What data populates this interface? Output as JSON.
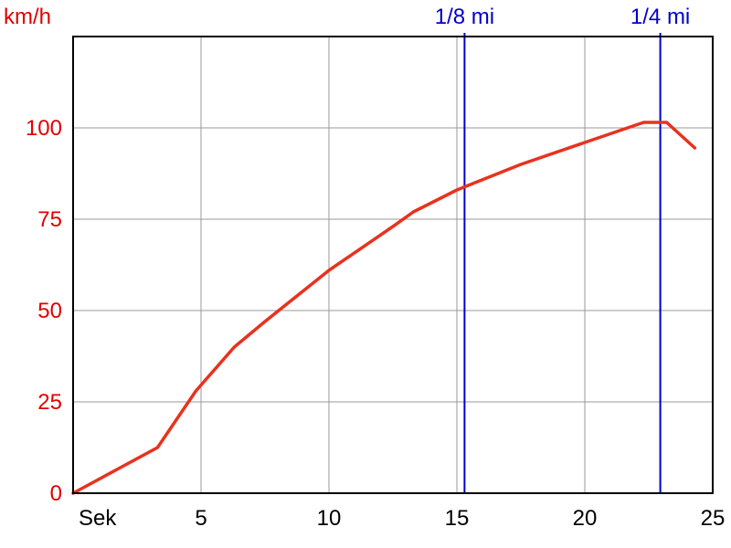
{
  "chart_data": {
    "type": "line",
    "ylabel": "km/h",
    "xlabel": "Sek",
    "xlim": [
      0,
      25
    ],
    "ylim": [
      0,
      125
    ],
    "x_ticks": [
      5,
      10,
      15,
      20,
      25
    ],
    "y_ticks": [
      0,
      25,
      50,
      75,
      100
    ],
    "grid": true,
    "series": [
      {
        "color": "#e8321e",
        "points": [
          [
            0,
            0
          ],
          [
            3.3,
            12.5
          ],
          [
            4.8,
            28
          ],
          [
            6.3,
            40
          ],
          [
            7.5,
            47
          ],
          [
            10,
            61
          ],
          [
            12.5,
            73
          ],
          [
            13.3,
            77
          ],
          [
            15,
            83
          ],
          [
            17.5,
            90
          ],
          [
            20,
            96
          ],
          [
            22.3,
            101.5
          ],
          [
            23.2,
            101.5
          ],
          [
            24.3,
            94.5
          ]
        ]
      }
    ],
    "markers": [
      {
        "label": "1/8 mi",
        "x": 15.3,
        "color": "#0000cc"
      },
      {
        "label": "1/4 mi",
        "x": 22.95,
        "color": "#0000cc"
      }
    ]
  },
  "colors": {
    "axis": "#000000",
    "grid": "#999999",
    "y_text": "#e00000",
    "x_text": "#000000"
  }
}
